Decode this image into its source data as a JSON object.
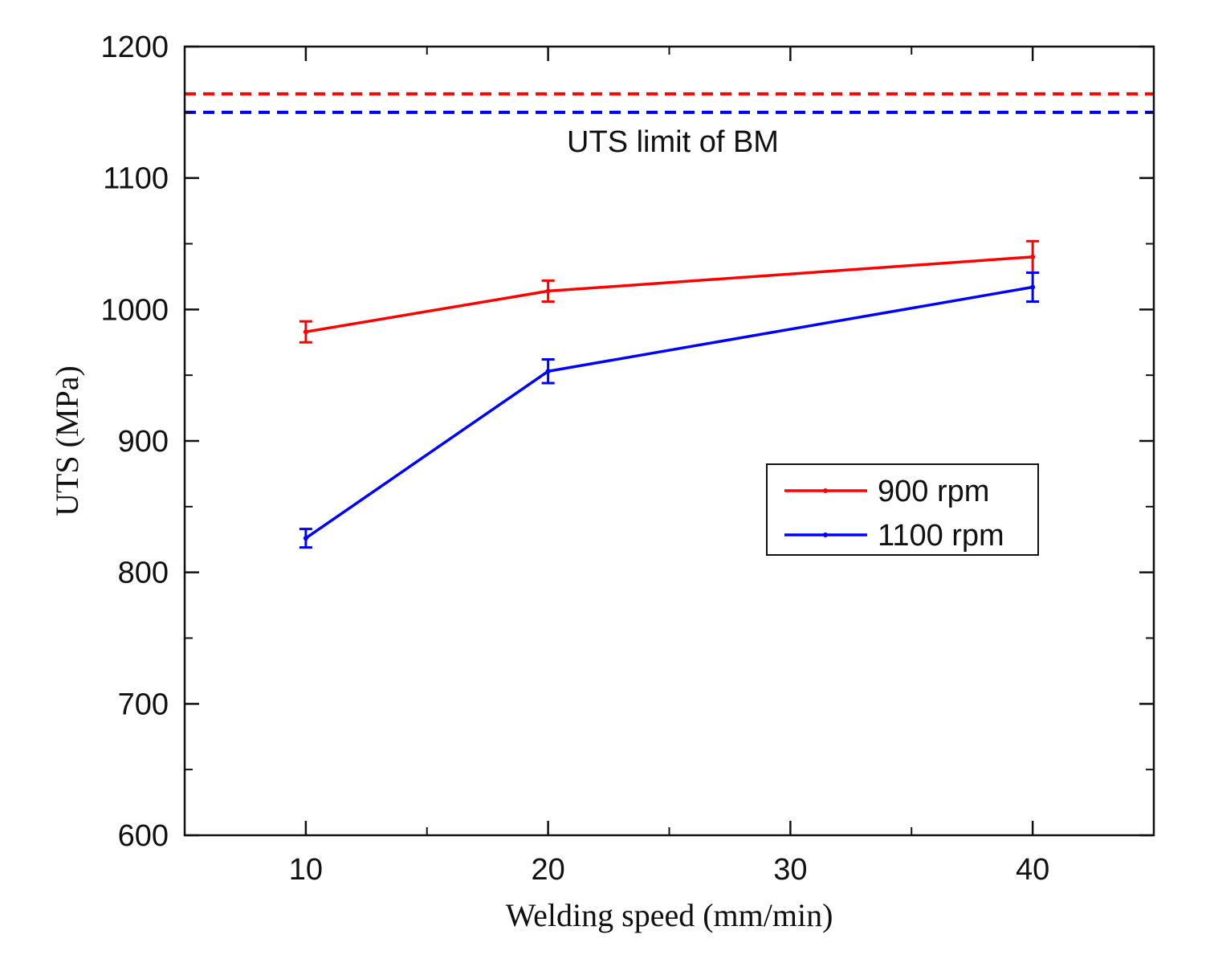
{
  "chart_data": {
    "type": "line",
    "title": "",
    "xlabel": "Welding speed (mm/min)",
    "ylabel": "UTS (MPa)",
    "xlim": [
      5,
      45
    ],
    "ylim": [
      600,
      1200
    ],
    "x_ticks": [
      10,
      20,
      30,
      40
    ],
    "y_ticks": [
      600,
      700,
      800,
      900,
      1000,
      1100,
      1200
    ],
    "grid": false,
    "legend_position": "center-right",
    "series": [
      {
        "name": "900 rpm",
        "color": "#ff0000",
        "x": [
          10,
          20,
          40
        ],
        "values": [
          983,
          1014,
          1040
        ],
        "error": [
          8,
          8,
          12
        ]
      },
      {
        "name": "1100 rpm",
        "color": "#0000ff",
        "x": [
          10,
          20,
          40
        ],
        "values": [
          826,
          953,
          1017
        ],
        "error": [
          7,
          9,
          11
        ]
      }
    ],
    "reference_lines": [
      {
        "name": "BM limit (900 rpm)",
        "value": 1164,
        "color": "#ff0000",
        "style": "dashed"
      },
      {
        "name": "BM limit (1100 rpm)",
        "value": 1150,
        "color": "#0000ff",
        "style": "dashed"
      }
    ],
    "annotations": [
      {
        "text": "UTS limit of BM",
        "x": 25,
        "y": 1128
      }
    ]
  }
}
